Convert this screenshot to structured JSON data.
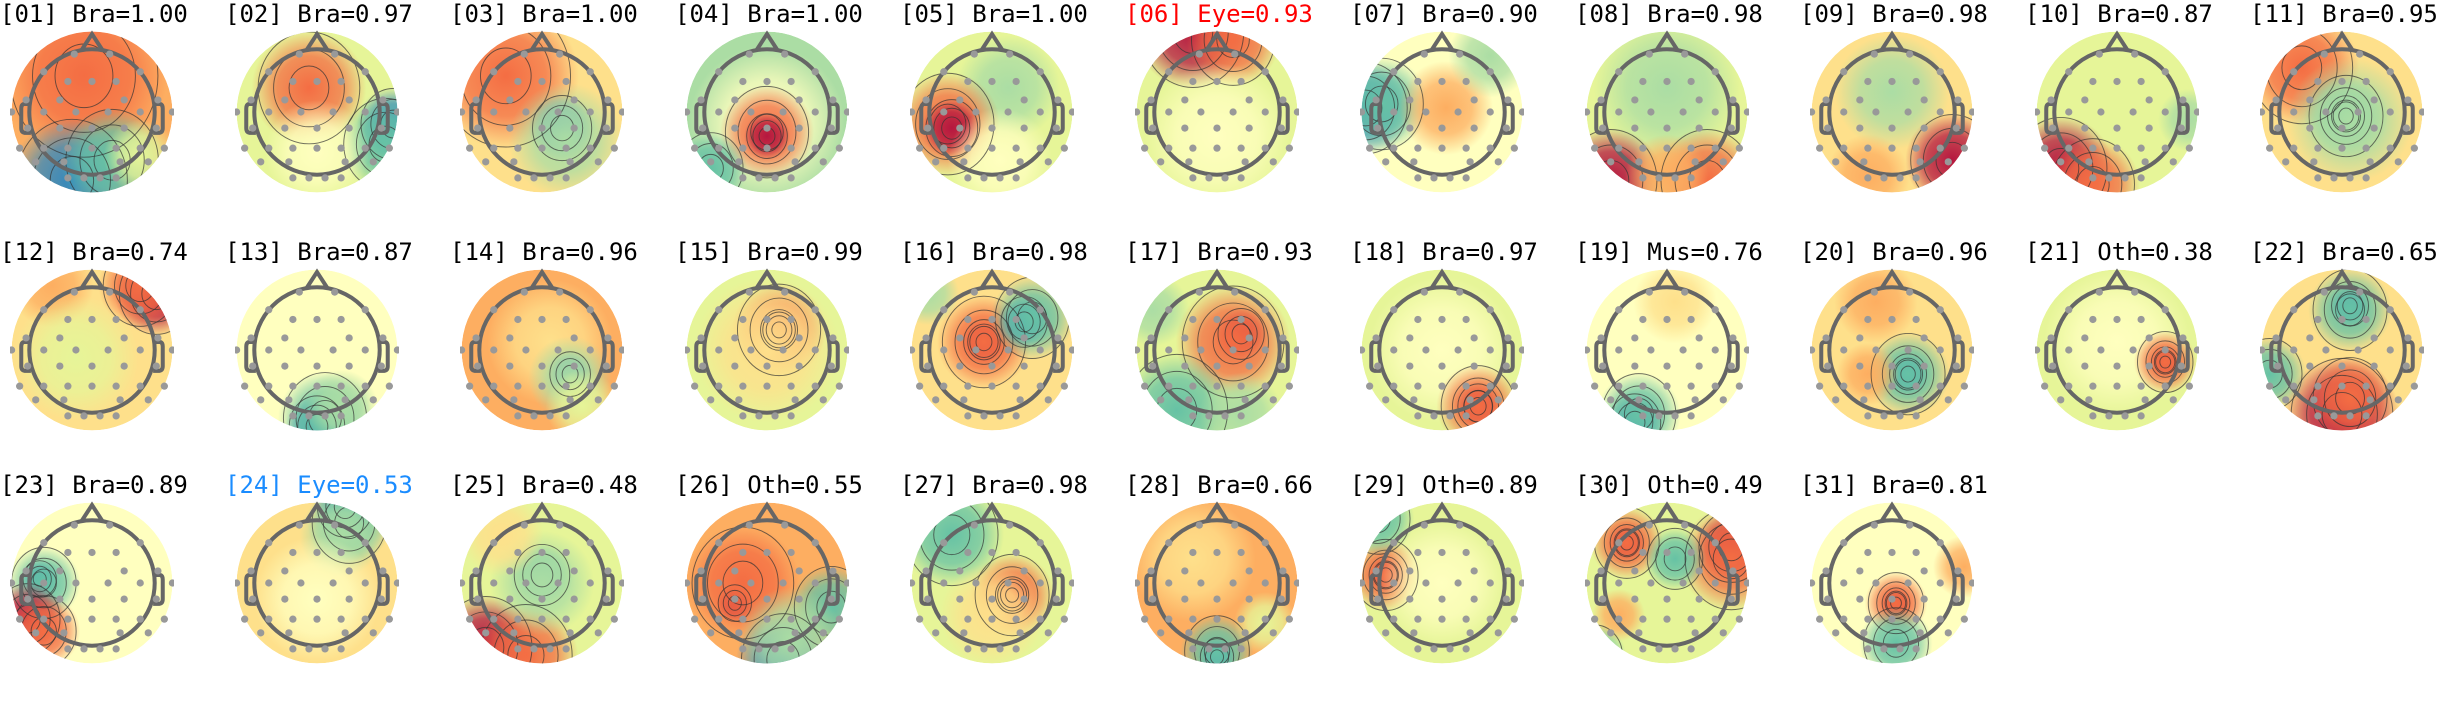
{
  "colormap": [
    "#5e4fa2",
    "#3288bd",
    "#66c2a5",
    "#abdda4",
    "#e6f598",
    "#ffffbf",
    "#fee08b",
    "#fdae61",
    "#f46d43",
    "#d53e4f",
    "#9e0142"
  ],
  "label_colors": {
    "default": "#000000",
    "eye_high": "#ff0000",
    "eye_low": "#1a8cff"
  },
  "components": [
    {
      "title": "[01] Bra=1.00",
      "color": "#000000"
    },
    {
      "title": "[02] Bra=0.97",
      "color": "#000000"
    },
    {
      "title": "[03] Bra=1.00",
      "color": "#000000"
    },
    {
      "title": "[04] Bra=1.00",
      "color": "#000000"
    },
    {
      "title": "[05] Bra=1.00",
      "color": "#000000"
    },
    {
      "title": "[06] Eye=0.93",
      "color": "#ff0000"
    },
    {
      "title": "[07] Bra=0.90",
      "color": "#000000"
    },
    {
      "title": "[08] Bra=0.98",
      "color": "#000000"
    },
    {
      "title": "[09] Bra=0.98",
      "color": "#000000"
    },
    {
      "title": "[10] Bra=0.87",
      "color": "#000000"
    },
    {
      "title": "[11] Bra=0.95",
      "color": "#000000"
    },
    {
      "title": "[12] Bra=0.74",
      "color": "#000000"
    },
    {
      "title": "[13] Bra=0.87",
      "color": "#000000"
    },
    {
      "title": "[14] Bra=0.96",
      "color": "#000000"
    },
    {
      "title": "[15] Bra=0.99",
      "color": "#000000"
    },
    {
      "title": "[16] Bra=0.98",
      "color": "#000000"
    },
    {
      "title": "[17] Bra=0.93",
      "color": "#000000"
    },
    {
      "title": "[18] Bra=0.97",
      "color": "#000000"
    },
    {
      "title": "[19] Mus=0.76",
      "color": "#000000"
    },
    {
      "title": "[20] Bra=0.96",
      "color": "#000000"
    },
    {
      "title": "[21] Oth=0.38",
      "color": "#000000"
    },
    {
      "title": "[22] Bra=0.65",
      "color": "#000000"
    },
    {
      "title": "[23] Bra=0.89",
      "color": "#000000"
    },
    {
      "title": "[24] Eye=0.53",
      "color": "#1a8cff"
    },
    {
      "title": "[25] Bra=0.48",
      "color": "#000000"
    },
    {
      "title": "[26] Oth=0.55",
      "color": "#000000"
    },
    {
      "title": "[27] Bra=0.98",
      "color": "#000000"
    },
    {
      "title": "[28] Bra=0.66",
      "color": "#000000"
    },
    {
      "title": "[29] Oth=0.89",
      "color": "#000000"
    },
    {
      "title": "[30] Oth=0.49",
      "color": "#000000"
    },
    {
      "title": "[31] Bra=0.81",
      "color": "#000000"
    }
  ]
}
